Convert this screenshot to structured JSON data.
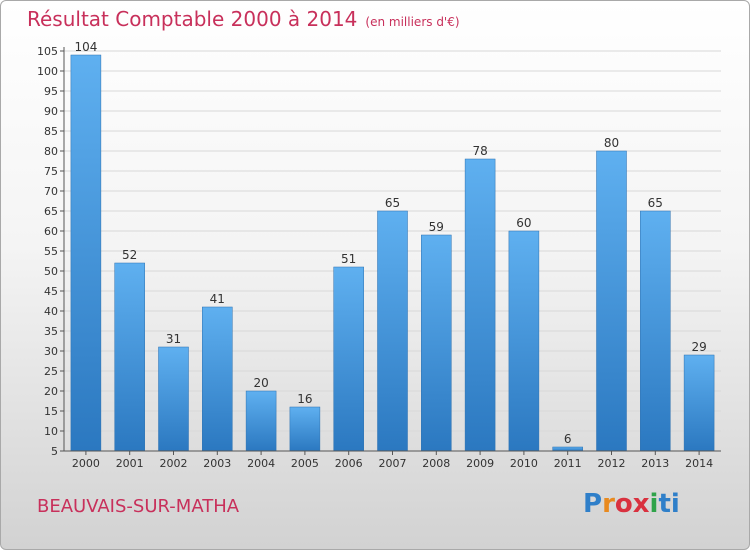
{
  "title": "Résultat Comptable 2000 à 2014",
  "subtitle": "(en milliers d'€)",
  "town": "BEAUVAIS-SUR-MATHA",
  "brand": {
    "letters": [
      "P",
      "r",
      "o",
      "x",
      "i",
      "ti"
    ],
    "colors": [
      "#2f7fc9",
      "#e88a1f",
      "#d9313f",
      "#d9313f",
      "#2fa34a",
      "#2f7fc9"
    ]
  },
  "chart_data": {
    "type": "bar",
    "title": "Résultat Comptable 2000 à 2014",
    "subtitle": "(en milliers d'€)",
    "categories": [
      "2000",
      "2001",
      "2002",
      "2003",
      "2004",
      "2005",
      "2006",
      "2007",
      "2008",
      "2009",
      "2010",
      "2011",
      "2012",
      "2013",
      "2014"
    ],
    "values": [
      104,
      52,
      31,
      41,
      20,
      16,
      51,
      65,
      59,
      78,
      60,
      6,
      80,
      65,
      29
    ],
    "ylim": [
      5,
      105
    ],
    "yticks": [
      5,
      10,
      15,
      20,
      25,
      30,
      35,
      40,
      45,
      50,
      55,
      60,
      65,
      70,
      75,
      80,
      85,
      90,
      95,
      100,
      105
    ],
    "grid": true,
    "bar_color": "#3a8fd6",
    "data_labels": true
  }
}
